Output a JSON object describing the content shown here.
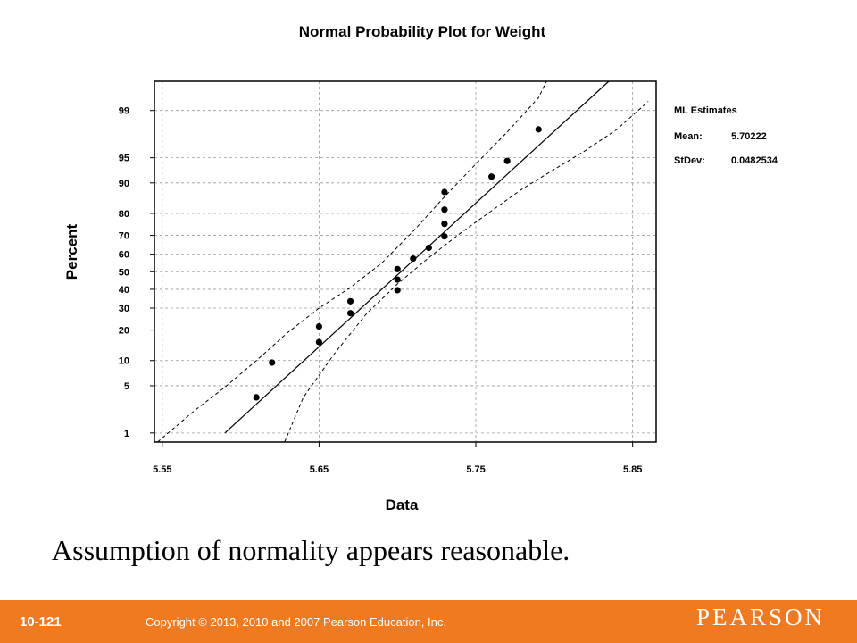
{
  "chart_data": {
    "type": "scatter",
    "title": "Normal Probability Plot for Weight",
    "xlabel": "Data",
    "ylabel": "Percent",
    "xlim": [
      5.545,
      5.865
    ],
    "ylim_percent": [
      0.7,
      99.7
    ],
    "y_scale": "normal-probability",
    "x_ticks": [
      "5.55",
      "5.65",
      "5.75",
      "5.85"
    ],
    "y_ticks": [
      "1",
      "5",
      "10",
      "20",
      "30",
      "40",
      "50",
      "60",
      "70",
      "80",
      "90",
      "95",
      "99"
    ],
    "grid": true,
    "points": [
      {
        "x": 5.61,
        "y": 3.5
      },
      {
        "x": 5.62,
        "y": 9.5
      },
      {
        "x": 5.65,
        "y": 15.5
      },
      {
        "x": 5.65,
        "y": 21.5
      },
      {
        "x": 5.67,
        "y": 27.5
      },
      {
        "x": 5.67,
        "y": 33.5
      },
      {
        "x": 5.7,
        "y": 39.5
      },
      {
        "x": 5.7,
        "y": 45.5
      },
      {
        "x": 5.7,
        "y": 51.5
      },
      {
        "x": 5.71,
        "y": 57.5
      },
      {
        "x": 5.72,
        "y": 63.5
      },
      {
        "x": 5.73,
        "y": 69.5
      },
      {
        "x": 5.73,
        "y": 75.5
      },
      {
        "x": 5.73,
        "y": 81.5
      },
      {
        "x": 5.73,
        "y": 87.5
      },
      {
        "x": 5.76,
        "y": 91.5
      },
      {
        "x": 5.77,
        "y": 94.5
      },
      {
        "x": 5.79,
        "y": 98.0
      }
    ],
    "fit_line": {
      "mean": 5.70222,
      "stdev": 0.0482534
    },
    "confidence_band": {
      "lower": [
        [
          5.628,
          0.7
        ],
        [
          5.64,
          3.5
        ],
        [
          5.66,
          12
        ],
        [
          5.68,
          27
        ],
        [
          5.7,
          43
        ],
        [
          5.72,
          58
        ],
        [
          5.74,
          71
        ],
        [
          5.76,
          81
        ],
        [
          5.78,
          88.5
        ],
        [
          5.8,
          93
        ],
        [
          5.82,
          96
        ],
        [
          5.84,
          98
        ],
        [
          5.86,
          99.3
        ]
      ],
      "upper": [
        [
          5.547,
          0.7
        ],
        [
          5.57,
          2.2
        ],
        [
          5.59,
          4.8
        ],
        [
          5.61,
          10
        ],
        [
          5.63,
          19
        ],
        [
          5.65,
          30
        ],
        [
          5.67,
          41
        ],
        [
          5.69,
          55
        ],
        [
          5.71,
          72
        ],
        [
          5.73,
          86
        ],
        [
          5.75,
          94
        ],
        [
          5.77,
          97.8
        ],
        [
          5.79,
          99.4
        ],
        [
          5.795,
          99.7
        ]
      ]
    },
    "ml_estimates": {
      "heading": "ML Estimates",
      "mean_label": "Mean:",
      "mean_value": "5.70222",
      "stdev_label": "StDev:",
      "stdev_value": "0.0482534"
    }
  },
  "caption": "Assumption of normality appears reasonable.",
  "footer": {
    "slide_number": "10-121",
    "copyright": "Copyright © 2013, 2010 and 2007 Pearson Education, Inc.",
    "publisher": "PEARSON"
  },
  "colors": {
    "footer_bg": "#f07a22",
    "ink": "#000000",
    "grid": "#999999"
  }
}
